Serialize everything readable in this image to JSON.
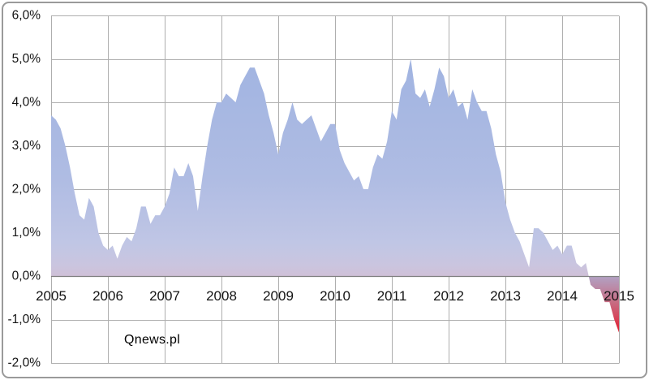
{
  "watermark": "Qnews.pl",
  "chart_data": {
    "type": "area",
    "title": "",
    "xlabel": "",
    "ylabel": "",
    "x_tick_labels": [
      "2005",
      "2006",
      "2007",
      "2008",
      "2009",
      "2010",
      "2011",
      "2012",
      "2013",
      "2014",
      "2015"
    ],
    "y_tick_labels": [
      "6,0%",
      "5,0%",
      "4,0%",
      "3,0%",
      "2,0%",
      "1,0%",
      "0,0%",
      "-1,0%",
      "-2,0%"
    ],
    "ylim": [
      -2,
      6
    ],
    "x_range": [
      "2005-01",
      "2015-01"
    ],
    "frequency": "monthly",
    "gridlines": true,
    "legend": false,
    "values": [
      3.7,
      3.6,
      3.4,
      3.0,
      2.5,
      1.9,
      1.4,
      1.3,
      1.8,
      1.6,
      1.0,
      0.7,
      0.6,
      0.7,
      0.4,
      0.7,
      0.9,
      0.8,
      1.1,
      1.6,
      1.6,
      1.2,
      1.4,
      1.4,
      1.6,
      1.9,
      2.5,
      2.3,
      2.3,
      2.6,
      2.3,
      1.5,
      2.3,
      3.0,
      3.6,
      4.0,
      4.0,
      4.2,
      4.1,
      4.0,
      4.4,
      4.6,
      4.8,
      4.8,
      4.5,
      4.2,
      3.7,
      3.3,
      2.8,
      3.3,
      3.6,
      4.0,
      3.6,
      3.5,
      3.6,
      3.7,
      3.4,
      3.1,
      3.3,
      3.5,
      3.5,
      2.9,
      2.6,
      2.4,
      2.2,
      2.3,
      2.0,
      2.0,
      2.5,
      2.8,
      2.7,
      3.1,
      3.8,
      3.6,
      4.3,
      4.5,
      5.0,
      4.2,
      4.1,
      4.3,
      3.9,
      4.3,
      4.8,
      4.6,
      4.1,
      4.3,
      3.9,
      4.0,
      3.6,
      4.3,
      4.0,
      3.8,
      3.8,
      3.4,
      2.8,
      2.4,
      1.7,
      1.3,
      1.0,
      0.8,
      0.5,
      0.2,
      1.1,
      1.1,
      1.0,
      0.8,
      0.6,
      0.7,
      0.5,
      0.7,
      0.7,
      0.3,
      0.2,
      0.3,
      -0.2,
      -0.3,
      -0.3,
      -0.6,
      -0.6,
      -1.0,
      -1.3
    ],
    "style": {
      "background": "#ffffff",
      "frame_border_color": "#9a9a9a",
      "gridline_color": "#aeaeae",
      "zero_axis_color": "#808080",
      "text_color": "#141414",
      "positive_gradient_stops": [
        [
          0,
          "#a1b4e1"
        ],
        [
          0.55,
          "#afbce3"
        ],
        [
          0.85,
          "#c0c6e5"
        ],
        [
          0.95,
          "#cac5df"
        ],
        [
          1,
          "#cfc0d7"
        ]
      ],
      "negative_gradient_stops": [
        [
          0,
          "#b1a2c4"
        ],
        [
          0.45,
          "#c66e85"
        ],
        [
          0.8,
          "#d93c50"
        ],
        [
          1,
          "#e2192b"
        ]
      ]
    }
  }
}
